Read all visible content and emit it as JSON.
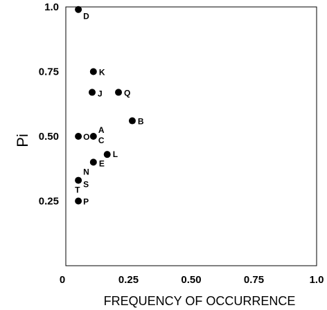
{
  "chart_data": {
    "type": "scatter",
    "xlabel": "FREQUENCY  OF OCCURRENCE",
    "ylabel": "Pi",
    "xlim": [
      0,
      1.0
    ],
    "ylim": [
      0,
      1.0
    ],
    "grid": false,
    "x_ticks": [
      "0",
      "0.25",
      "0.50",
      "0.75",
      "1.0"
    ],
    "y_ticks": [
      "0.25",
      "0.50",
      "0.75",
      "1.0"
    ],
    "x_tick_values": [
      0,
      0.25,
      0.5,
      0.75,
      1.0
    ],
    "y_tick_values": [
      0.25,
      0.5,
      0.75,
      1.0
    ],
    "points": [
      {
        "label": "D",
        "x": 0.05,
        "y": 0.99
      },
      {
        "label": "K",
        "x": 0.11,
        "y": 0.75
      },
      {
        "label": "J",
        "x": 0.105,
        "y": 0.67
      },
      {
        "label": "Q",
        "x": 0.21,
        "y": 0.67
      },
      {
        "label": "B",
        "x": 0.265,
        "y": 0.56
      },
      {
        "label": "O",
        "x": 0.05,
        "y": 0.5
      },
      {
        "label": "A",
        "x": 0.11,
        "y": 0.5
      },
      {
        "label": "C",
        "x": 0.11,
        "y": 0.5
      },
      {
        "label": "L",
        "x": 0.165,
        "y": 0.43
      },
      {
        "label": "E",
        "x": 0.11,
        "y": 0.4
      },
      {
        "label": "N",
        "x": 0.05,
        "y": 0.33
      },
      {
        "label": "S",
        "x": 0.05,
        "y": 0.33
      },
      {
        "label": "T",
        "x": 0.05,
        "y": 0.33
      },
      {
        "label": "P",
        "x": 0.05,
        "y": 0.25
      }
    ]
  }
}
